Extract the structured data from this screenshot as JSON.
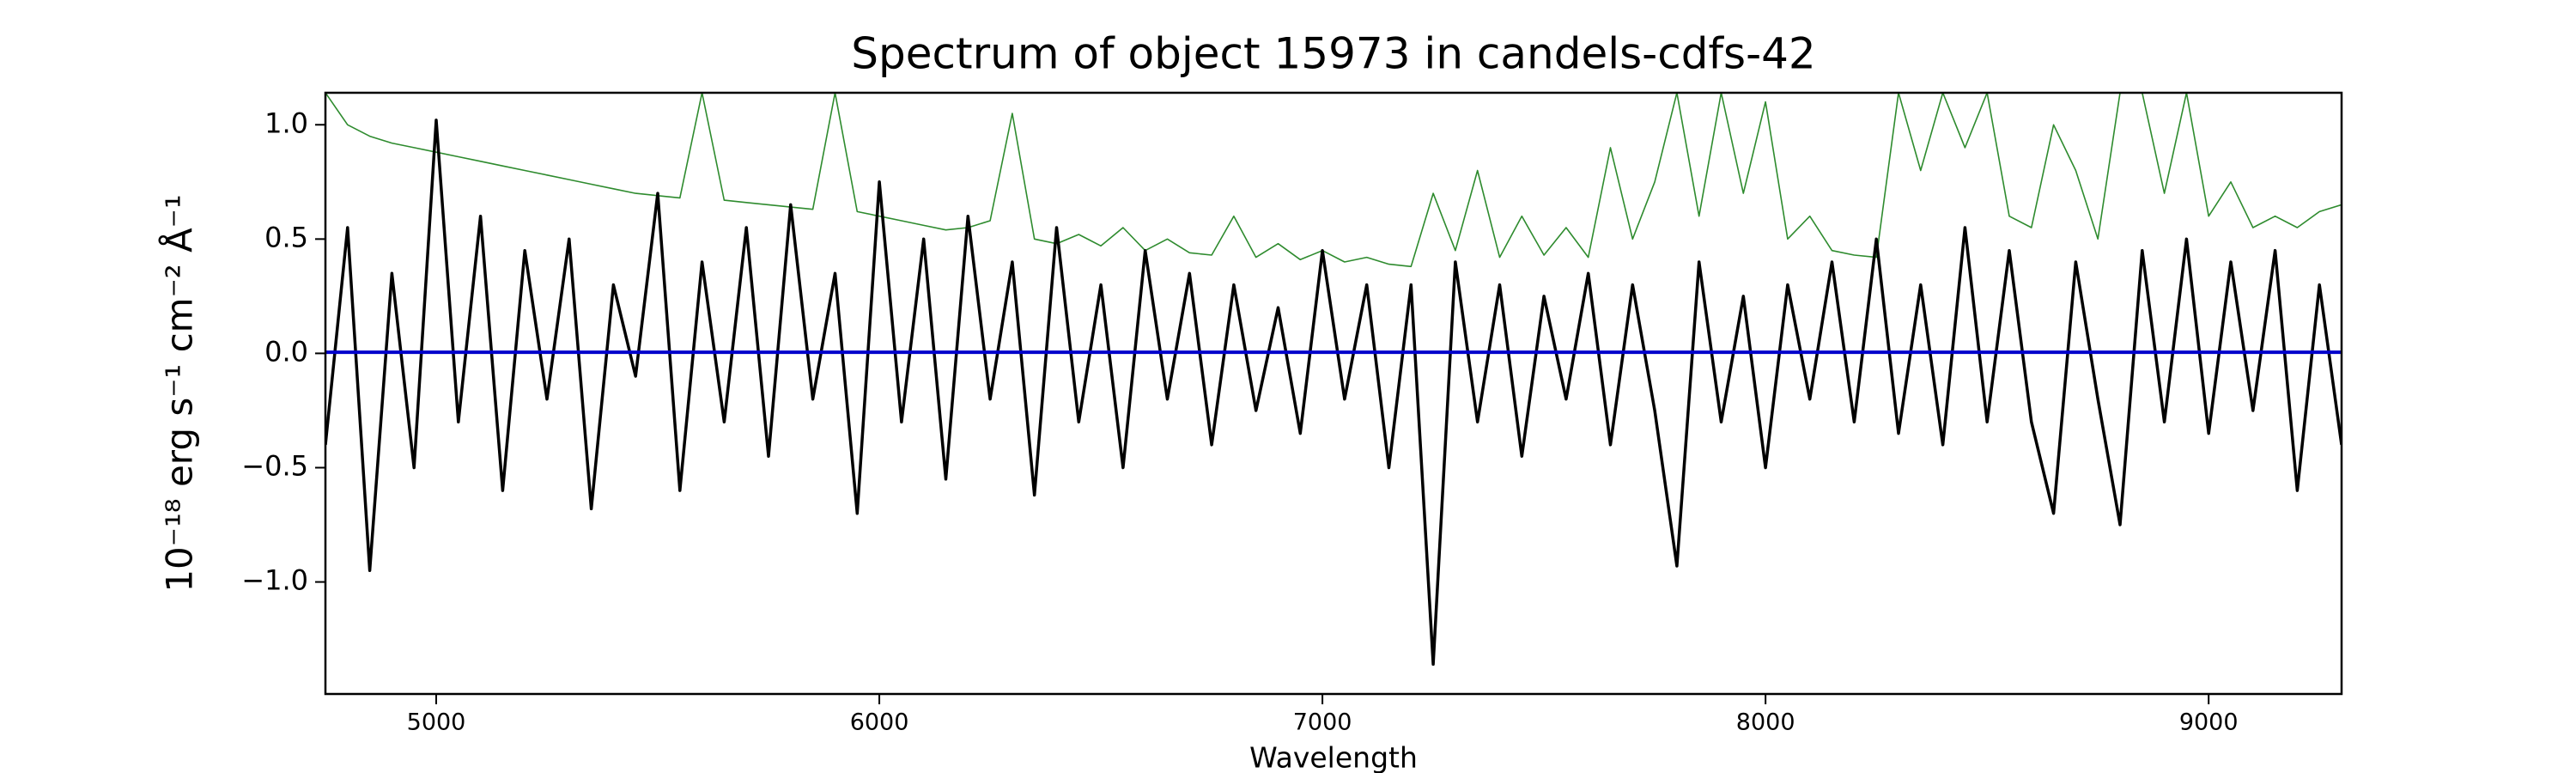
{
  "chart_data": {
    "type": "line",
    "title": "Spectrum of object 15973 in candels-cdfs-42",
    "xlabel": "Wavelength",
    "ylabel": "10⁻¹⁸ erg s⁻¹ cm⁻² Å⁻¹",
    "xlim": [
      4750,
      9300
    ],
    "ylim": [
      -1.49,
      1.14
    ],
    "xticks": [
      5000,
      6000,
      7000,
      8000,
      9000
    ],
    "yticks": [
      {
        "value": -1.0,
        "label": "−1.0"
      },
      {
        "value": -0.5,
        "label": "−0.5"
      },
      {
        "value": 0.0,
        "label": "0.0"
      },
      {
        "value": 0.5,
        "label": "0.5"
      },
      {
        "value": 1.0,
        "label": "1.0"
      }
    ],
    "series": [
      {
        "color": "#2e8b2e",
        "width": 1.6,
        "x": [
          4750,
          4800,
          4850,
          4900,
          4950,
          5000,
          5050,
          5100,
          5150,
          5200,
          5250,
          5300,
          5350,
          5400,
          5450,
          5500,
          5550,
          5600,
          5650,
          5700,
          5750,
          5800,
          5850,
          5900,
          5950,
          6000,
          6050,
          6100,
          6150,
          6200,
          6250,
          6300,
          6350,
          6400,
          6450,
          6500,
          6550,
          6600,
          6650,
          6700,
          6750,
          6800,
          6850,
          6900,
          6950,
          7000,
          7050,
          7100,
          7150,
          7200,
          7250,
          7300,
          7350,
          7400,
          7450,
          7500,
          7550,
          7600,
          7650,
          7700,
          7750,
          7800,
          7850,
          7900,
          7950,
          8000,
          8050,
          8100,
          8150,
          8200,
          8250,
          8300,
          8350,
          8400,
          8450,
          8500,
          8550,
          8600,
          8650,
          8700,
          8750,
          8800,
          8850,
          8900,
          8950,
          9000,
          9050,
          9100,
          9150,
          9200,
          9250,
          9300
        ],
        "values": [
          1.14,
          1.0,
          0.95,
          0.92,
          0.9,
          0.88,
          0.86,
          0.84,
          0.82,
          0.8,
          0.78,
          0.76,
          0.74,
          0.72,
          0.7,
          0.69,
          0.68,
          1.14,
          0.67,
          0.66,
          0.65,
          0.64,
          0.63,
          1.14,
          0.62,
          0.6,
          0.58,
          0.56,
          0.54,
          0.55,
          0.58,
          1.05,
          0.5,
          0.48,
          0.52,
          0.47,
          0.55,
          0.45,
          0.5,
          0.44,
          0.43,
          0.6,
          0.42,
          0.48,
          0.41,
          0.45,
          0.4,
          0.42,
          0.39,
          0.38,
          0.7,
          0.45,
          0.8,
          0.42,
          0.6,
          0.43,
          0.55,
          0.42,
          0.9,
          0.5,
          0.75,
          1.14,
          0.6,
          1.14,
          0.7,
          1.1,
          0.5,
          0.6,
          0.45,
          0.43,
          0.42,
          1.14,
          0.8,
          1.14,
          0.9,
          1.14,
          0.6,
          0.55,
          1.0,
          0.8,
          0.5,
          1.14,
          1.14,
          0.7,
          1.14,
          0.6,
          0.75,
          0.55,
          0.6,
          0.55,
          0.62,
          0.65
        ]
      },
      {
        "color": "#000000",
        "width": 3.5,
        "x": [
          4750,
          4800,
          4850,
          4900,
          4950,
          5000,
          5050,
          5100,
          5150,
          5200,
          5250,
          5300,
          5350,
          5400,
          5450,
          5500,
          5550,
          5600,
          5650,
          5700,
          5750,
          5800,
          5850,
          5900,
          5950,
          6000,
          6050,
          6100,
          6150,
          6200,
          6250,
          6300,
          6350,
          6400,
          6450,
          6500,
          6550,
          6600,
          6650,
          6700,
          6750,
          6800,
          6850,
          6900,
          6950,
          7000,
          7050,
          7100,
          7150,
          7200,
          7250,
          7300,
          7350,
          7400,
          7450,
          7500,
          7550,
          7600,
          7650,
          7700,
          7750,
          7800,
          7850,
          7900,
          7950,
          8000,
          8050,
          8100,
          8150,
          8200,
          8250,
          8300,
          8350,
          8400,
          8450,
          8500,
          8550,
          8600,
          8650,
          8700,
          8750,
          8800,
          8850,
          8900,
          8950,
          9000,
          9050,
          9100,
          9150,
          9200,
          9250,
          9300
        ],
        "values": [
          -0.4,
          0.55,
          -0.95,
          0.35,
          -0.5,
          1.02,
          -0.3,
          0.6,
          -0.6,
          0.45,
          -0.2,
          0.5,
          -0.68,
          0.3,
          -0.1,
          0.7,
          -0.6,
          0.4,
          -0.3,
          0.55,
          -0.45,
          0.65,
          -0.2,
          0.35,
          -0.7,
          0.75,
          -0.3,
          0.5,
          -0.55,
          0.6,
          -0.2,
          0.4,
          -0.62,
          0.55,
          -0.3,
          0.3,
          -0.5,
          0.45,
          -0.2,
          0.35,
          -0.4,
          0.3,
          -0.25,
          0.2,
          -0.35,
          0.45,
          -0.2,
          0.3,
          -0.5,
          0.3,
          -1.36,
          0.4,
          -0.3,
          0.3,
          -0.45,
          0.25,
          -0.2,
          0.35,
          -0.4,
          0.3,
          -0.25,
          -0.93,
          0.4,
          -0.3,
          0.25,
          -0.5,
          0.3,
          -0.2,
          0.4,
          -0.3,
          0.5,
          -0.35,
          0.3,
          -0.4,
          0.55,
          -0.3,
          0.45,
          -0.3,
          -0.7,
          0.4,
          -0.2,
          -0.75,
          0.45,
          -0.3,
          0.5,
          -0.35,
          0.4,
          -0.25,
          0.45,
          -0.6,
          0.3,
          -0.4
        ]
      },
      {
        "color": "#0000cc",
        "width": 4,
        "x": [
          4750,
          9300
        ],
        "values": [
          0.005,
          0.005
        ]
      }
    ]
  }
}
